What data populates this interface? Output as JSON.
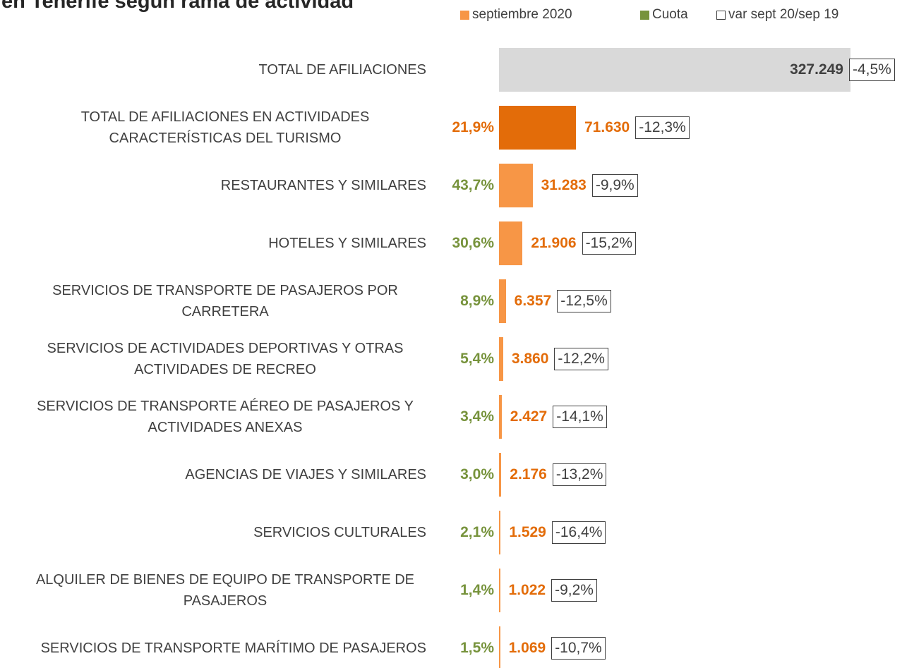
{
  "chart_data": {
    "type": "bar",
    "title": "en Tenerife según rama de actividad",
    "categories": [
      "TOTAL DE AFILIACIONES",
      "TOTAL DE AFILIACIONES EN ACTIVIDADES CARACTERÍSTICAS DEL TURISMO",
      "RESTAURANTES Y SIMILARES",
      "HOTELES Y SIMILARES",
      "SERVICIOS DE TRANSPORTE DE PASAJEROS POR CARRETERA",
      "SERVICIOS DE ACTIVIDADES DEPORTIVAS Y OTRAS ACTIVIDADES DE RECREO",
      "SERVICIOS DE TRANSPORTE AÉREO DE PASAJEROS Y ACTIVIDADES ANEXAS",
      "AGENCIAS DE VIAJES Y SIMILARES",
      "SERVICIOS CULTURALES",
      "ALQUILER DE BIENES DE EQUIPO DE TRANSPORTE DE PASAJEROS",
      "SERVICIOS DE TRANSPORTE MARÍTIMO DE PASAJEROS"
    ],
    "series": [
      {
        "name": "septiembre 2020",
        "color": "#f79646",
        "colors": [
          "#d9d9d9",
          "#e36c09",
          "#f79646",
          "#f79646",
          "#f79646",
          "#f79646",
          "#f79646",
          "#f79646",
          "#f79646",
          "#f79646",
          "#f79646"
        ],
        "label_colors": [
          "#404040",
          "#e36c09",
          "#e36c09",
          "#e36c09",
          "#e36c09",
          "#e36c09",
          "#e36c09",
          "#e36c09",
          "#e36c09",
          "#e36c09",
          "#e36c09"
        ],
        "values": [
          327249,
          71630,
          31283,
          21906,
          6357,
          3860,
          2427,
          2176,
          1529,
          1022,
          1069
        ],
        "value_labels": [
          "327.249",
          "71.630",
          "31.283",
          "21.906",
          "6.357",
          "3.860",
          "2.427",
          "2.176",
          "1.529",
          "1.022",
          "1.069"
        ]
      },
      {
        "name": "Cuota",
        "color": "#77933c",
        "colors": [
          null,
          "#e36c09",
          "#77933c",
          "#77933c",
          "#77933c",
          "#77933c",
          "#77933c",
          "#77933c",
          "#77933c",
          "#77933c",
          "#77933c"
        ],
        "values": [
          null,
          21.9,
          43.7,
          30.6,
          8.9,
          5.4,
          3.4,
          3.0,
          2.1,
          1.4,
          1.5
        ],
        "value_labels": [
          null,
          "21,9%",
          "43,7%",
          "30,6%",
          "8,9%",
          "5,4%",
          "3,4%",
          "3,0%",
          "2,1%",
          "1,4%",
          "1,5%"
        ]
      },
      {
        "name": "var sept 20/sep 19",
        "color": "#ffffff",
        "values": [
          -4.5,
          -12.3,
          -9.9,
          -15.2,
          -12.5,
          -12.2,
          -14.1,
          -13.2,
          -16.4,
          -9.2,
          -10.7
        ],
        "value_labels": [
          "-4,5%",
          "-12,3%",
          "-9,9%",
          "-15,2%",
          "-12,5%",
          "-12,2%",
          "-14,1%",
          "-13,2%",
          "-16,4%",
          "-9,2%",
          "-10,7%"
        ]
      }
    ]
  }
}
